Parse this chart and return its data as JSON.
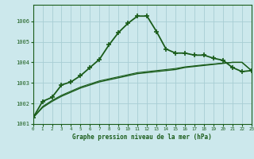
{
  "title": "Graphe pression niveau de la mer (hPa)",
  "background_color": "#cce8ec",
  "grid_color": "#a8cdd4",
  "line_color": "#1a5c1a",
  "xlim": [
    0,
    23
  ],
  "ylim": [
    1001,
    1006.8
  ],
  "yticks": [
    1001,
    1002,
    1003,
    1004,
    1005,
    1006
  ],
  "xticks": [
    0,
    1,
    2,
    3,
    4,
    5,
    6,
    7,
    8,
    9,
    10,
    11,
    12,
    13,
    14,
    15,
    16,
    17,
    18,
    19,
    20,
    21,
    22,
    23
  ],
  "series": [
    {
      "x": [
        0,
        1,
        2,
        3,
        4,
        5,
        6,
        7,
        8,
        9,
        10,
        11,
        12,
        13,
        14,
        15,
        16,
        17,
        18,
        19,
        20,
        21,
        22,
        23
      ],
      "y": [
        1001.3,
        1002.1,
        1002.3,
        1002.9,
        1003.05,
        1003.35,
        1003.75,
        1004.15,
        1004.85,
        1005.45,
        1005.9,
        1006.25,
        1006.25,
        1005.5,
        1004.65,
        1004.45,
        1004.45,
        1004.35,
        1004.35,
        1004.2,
        1004.1,
        1003.75,
        1003.55,
        1003.6
      ],
      "linewidth": 1.3,
      "has_marker": true
    },
    {
      "x": [
        0,
        1,
        2,
        3,
        4,
        5,
        6,
        7,
        8,
        9,
        10,
        11,
        12,
        13,
        14,
        15,
        16,
        17,
        18,
        19,
        20,
        21,
        22,
        23
      ],
      "y": [
        1001.3,
        1001.8,
        1002.1,
        1002.35,
        1002.55,
        1002.75,
        1002.9,
        1003.05,
        1003.15,
        1003.25,
        1003.35,
        1003.45,
        1003.5,
        1003.55,
        1003.6,
        1003.65,
        1003.75,
        1003.8,
        1003.85,
        1003.9,
        1003.95,
        1004.0,
        1004.0,
        1003.6
      ],
      "linewidth": 1.0,
      "has_marker": false
    },
    {
      "x": [
        0,
        1,
        2,
        3,
        4,
        5,
        6,
        7,
        8,
        9,
        10,
        11,
        12,
        13,
        14,
        15,
        16,
        17,
        18,
        19,
        20,
        21,
        22,
        23
      ],
      "y": [
        1001.3,
        1001.85,
        1002.15,
        1002.4,
        1002.6,
        1002.8,
        1002.95,
        1003.1,
        1003.2,
        1003.3,
        1003.4,
        1003.5,
        1003.55,
        1003.6,
        1003.65,
        1003.7,
        1003.78,
        1003.83,
        1003.88,
        1003.92,
        1003.96,
        1004.0,
        1004.0,
        1003.6
      ],
      "linewidth": 0.8,
      "has_marker": false
    }
  ]
}
